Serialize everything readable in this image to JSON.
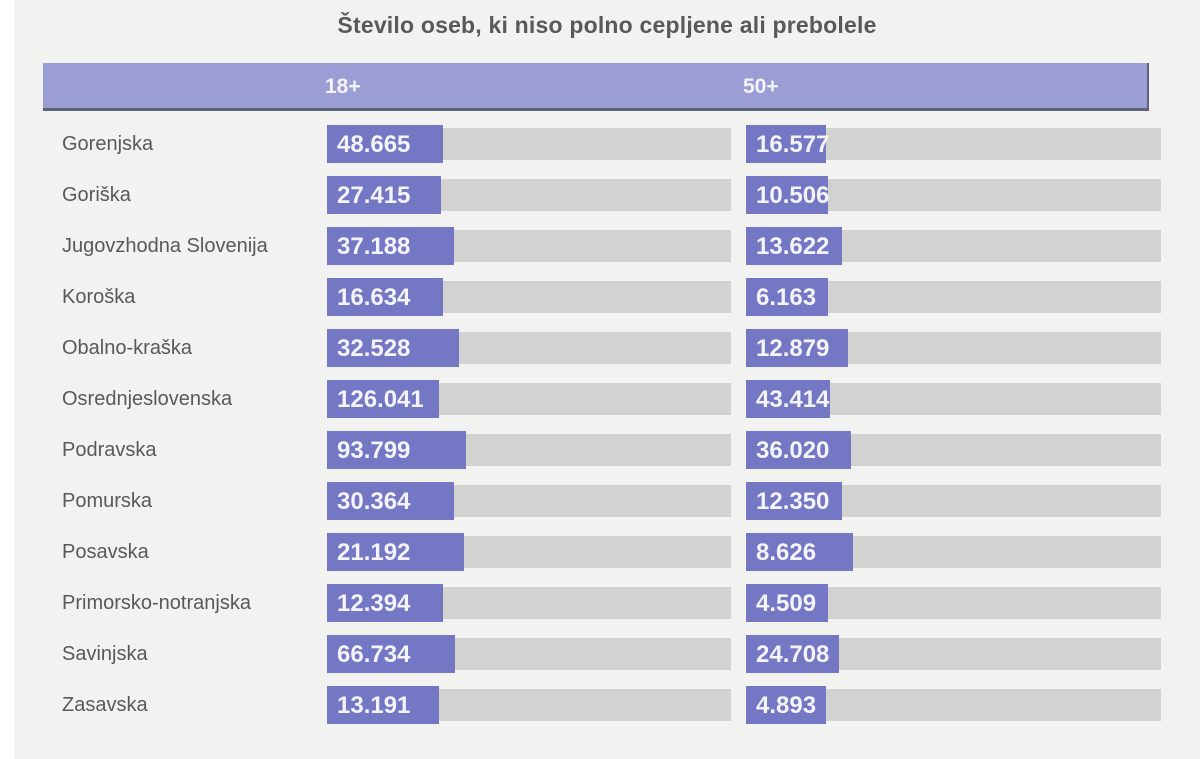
{
  "title": "Število oseb, ki niso polno cepljene ali prebolele",
  "header": {
    "col1": "18+",
    "col2": "50+"
  },
  "colors": {
    "panel_bg": "#f2f2f1",
    "header_fill": "#9a9ed4",
    "header_border": "#5d617b",
    "bar_fill": "#7478c4",
    "bar_track": "#d2d2d0",
    "text_gray": "#595959",
    "value_text": "#f3f3f8"
  },
  "chart_data": {
    "type": "bar",
    "title": "Število oseb, ki niso polno cepljene ali prebolele",
    "orientation": "horizontal",
    "grid": false,
    "legend_position": "column-headers",
    "categories": [
      "Gorenjska",
      "Goriška",
      "Jugovzhodna Slovenija",
      "Koroška",
      "Obalno-kraška",
      "Osrednjeslovenska",
      "Podravska",
      "Pomurska",
      "Posavska",
      "Primorsko-notranjska",
      "Savinjska",
      "Zasavska"
    ],
    "series": [
      {
        "name": "18+",
        "values": [
          48665,
          27415,
          37188,
          16634,
          32528,
          126041,
          93799,
          30364,
          21192,
          12394,
          66734,
          13191
        ],
        "display_labels": [
          "48.665",
          "27.415",
          "37.188",
          "16.634",
          "32.528",
          "126.041",
          "93.799",
          "30.364",
          "21.192",
          "12.394",
          "66.734",
          "13.191"
        ],
        "bar_fill_pct": [
          28.7,
          28.2,
          31.4,
          28.7,
          32.7,
          27.7,
          34.4,
          31.4,
          33.9,
          28.7,
          31.7,
          27.7
        ]
      },
      {
        "name": "50+",
        "values": [
          16577,
          10506,
          13622,
          6163,
          12879,
          43414,
          36020,
          12350,
          8626,
          4509,
          24708,
          4893
        ],
        "display_labels": [
          "16.577",
          "10.506",
          "13.622",
          "6.163",
          "12.879",
          "43.414",
          "36.020",
          "12.350",
          "8.626",
          "4.509",
          "24.708",
          "4.893"
        ],
        "bar_fill_pct": [
          19.3,
          19.8,
          23.1,
          19.8,
          24.6,
          20.2,
          25.3,
          23.1,
          25.8,
          19.8,
          22.4,
          19.3
        ]
      }
    ],
    "note": "Bar lengths as rendered are not proportional to absolute values; fill percentages measured from the image."
  },
  "layout": {
    "first_row_top": 125,
    "row_pitch": 51
  }
}
